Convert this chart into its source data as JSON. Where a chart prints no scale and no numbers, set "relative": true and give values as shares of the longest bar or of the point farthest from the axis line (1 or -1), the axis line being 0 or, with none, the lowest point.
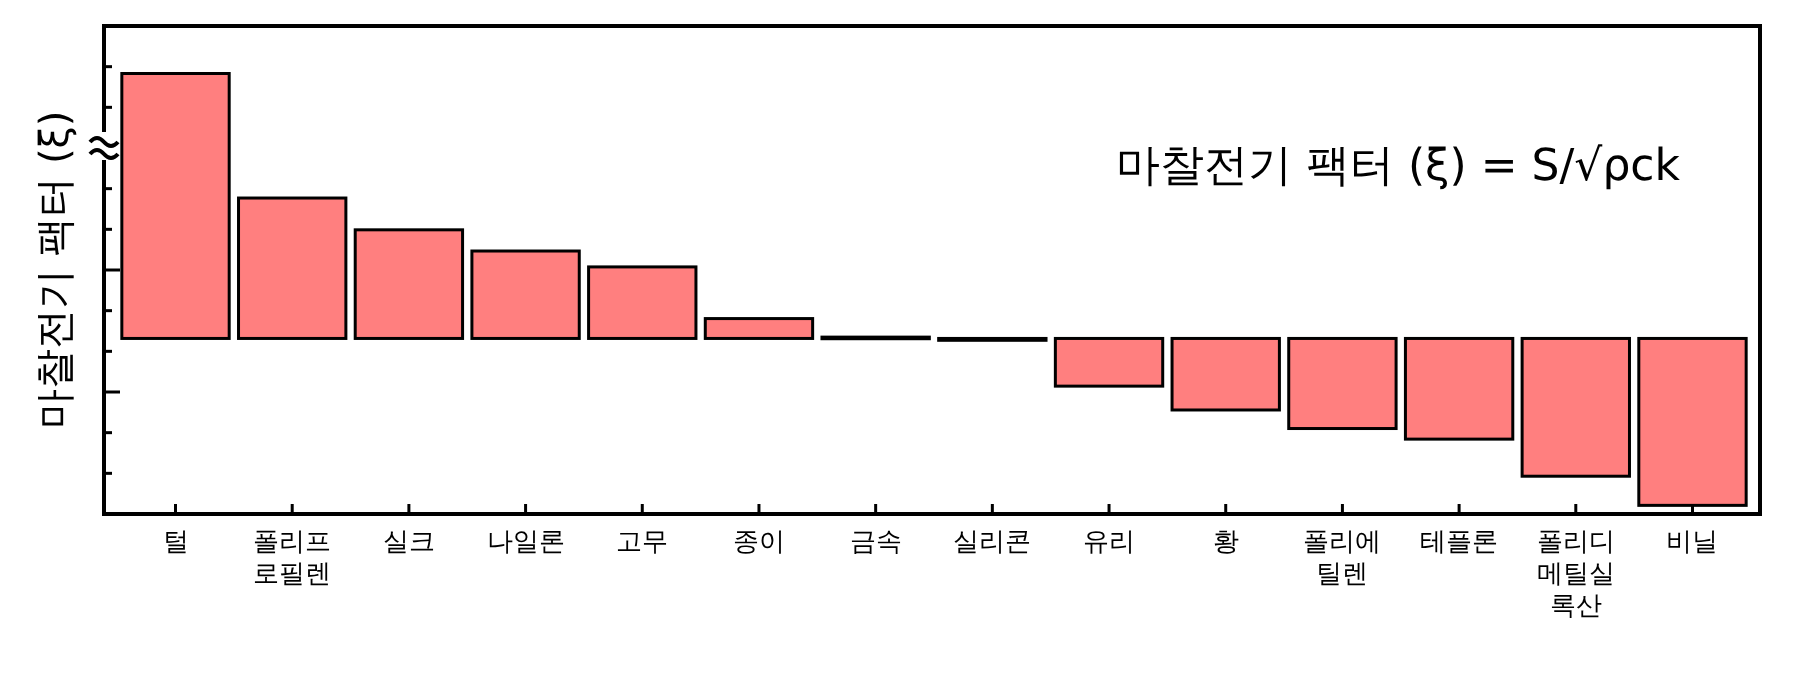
{
  "chart_data": {
    "type": "bar",
    "relative": true,
    "ylabel": "마찰전기 팩터 (ξ)",
    "annotations": [
      "마찰전기 팩터 (ξ) = S/√ρck"
    ],
    "categories": [
      "털",
      "폴리프로필렌",
      "실크",
      "나일론",
      "고무",
      "종이",
      "금속",
      "실리콘",
      "유리",
      "황",
      "폴리에틸렌",
      "테플론",
      "폴리디메틸실록산",
      "비닐"
    ],
    "values": [
      1,
      0.53,
      0.41,
      0.33,
      0.27,
      0.075,
      0.005,
      -0.007,
      -0.18,
      -0.27,
      -0.34,
      -0.38,
      -0.52,
      -0.63
    ],
    "color": "#ff7f7f"
  }
}
